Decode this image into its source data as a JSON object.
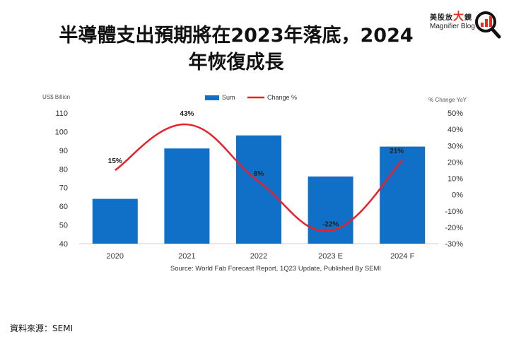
{
  "title": "半導體支出預期將在2023年落底，2024年恢復成長",
  "logo": {
    "cn_prefix": "美股放",
    "cn_big": "大",
    "cn_suffix": "鏡",
    "en": "Magnifier Blog",
    "icon": "magnifier-chart-icon"
  },
  "footer_source": "資料來源：SEMI",
  "colors": {
    "bars": "#1070c8",
    "line": "#e8202a",
    "logo_red": "#e03020"
  },
  "chart_data": {
    "type": "bar+line",
    "categories": [
      "2020",
      "2021",
      "2022",
      "2023 E",
      "2024 F"
    ],
    "series": [
      {
        "name": "Sum",
        "type": "bar",
        "axis": "left",
        "values": [
          64,
          91,
          98,
          76,
          92
        ]
      },
      {
        "name": "Change %",
        "type": "line",
        "axis": "right",
        "values": [
          15,
          43,
          8,
          -22,
          21
        ],
        "labels": [
          "15%",
          "43%",
          "8%",
          "-22%",
          "21%"
        ]
      }
    ],
    "y_left": {
      "label": "US$ Billion",
      "range": [
        40,
        110
      ],
      "ticks": [
        "40",
        "50",
        "60",
        "70",
        "80",
        "90",
        "100",
        "110"
      ]
    },
    "y_right": {
      "label": "% Change YoY",
      "range": [
        -30,
        50
      ],
      "ticks": [
        "-30%",
        "-20%",
        "-10%",
        "0%",
        "10%",
        "20%",
        "30%",
        "40%",
        "50%"
      ]
    },
    "legend": {
      "placement": "top",
      "items": [
        "Sum",
        "Change %"
      ]
    },
    "source": "Source: World Fab Forecast Report, 1Q23 Update, Published By SEMI",
    "grid": false
  }
}
